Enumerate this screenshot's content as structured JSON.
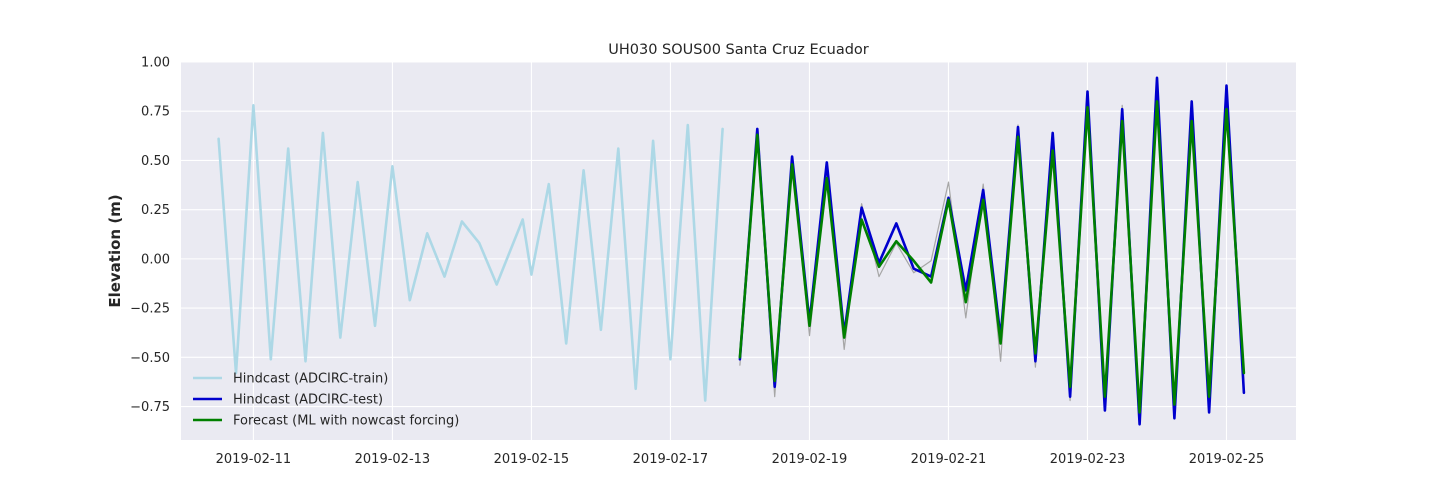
{
  "chart_data": {
    "type": "line",
    "title": "UH030 SOUS00 Santa Cruz Ecuador",
    "xlabel": "",
    "ylabel": "Elevation (m)",
    "xlim": [
      "2019-02-09T23:00",
      "2019-02-26T00:00"
    ],
    "ylim": [
      -0.92,
      1.0
    ],
    "x_ticks": [
      "2019-02-11",
      "2019-02-13",
      "2019-02-15",
      "2019-02-17",
      "2019-02-19",
      "2019-02-21",
      "2019-02-23",
      "2019-02-25"
    ],
    "y_ticks": [
      -0.75,
      -0.5,
      -0.25,
      0.0,
      0.25,
      0.5,
      0.75,
      1.0
    ],
    "y_tick_labels": [
      "−0.75",
      "−0.50",
      "−0.25",
      "0.00",
      "0.25",
      "0.50",
      "0.75",
      "1.00"
    ],
    "grid": true,
    "legend_position": "lower-left",
    "series": [
      {
        "name": "Hindcast (ADCIRC-train)",
        "color": "#add8e6",
        "x": [
          "2019-02-10T12:00",
          "2019-02-10T18:00",
          "2019-02-11T00:00",
          "2019-02-11T06:00",
          "2019-02-11T12:00",
          "2019-02-11T18:00",
          "2019-02-12T00:00",
          "2019-02-12T06:00",
          "2019-02-12T12:00",
          "2019-02-12T18:00",
          "2019-02-13T00:00",
          "2019-02-13T06:00",
          "2019-02-13T12:00",
          "2019-02-13T18:00",
          "2019-02-14T00:00",
          "2019-02-14T06:00",
          "2019-02-14T12:00",
          "2019-02-14T21:00",
          "2019-02-15T00:00",
          "2019-02-15T06:00",
          "2019-02-15T12:00",
          "2019-02-15T18:00",
          "2019-02-16T00:00",
          "2019-02-16T06:00",
          "2019-02-16T12:00",
          "2019-02-16T18:00",
          "2019-02-17T00:00",
          "2019-02-17T06:00",
          "2019-02-17T12:00",
          "2019-02-17T18:00"
        ],
        "y": [
          0.61,
          -0.58,
          0.78,
          -0.51,
          0.56,
          -0.52,
          0.64,
          -0.4,
          0.39,
          -0.34,
          0.47,
          -0.21,
          0.13,
          -0.09,
          0.19,
          0.08,
          -0.13,
          0.2,
          -0.08,
          0.38,
          -0.43,
          0.45,
          -0.36,
          0.56,
          -0.66,
          0.6,
          -0.51,
          0.68,
          -0.72,
          0.66
        ]
      },
      {
        "name": "",
        "color": "#a6a6a6",
        "x": [
          "2019-02-18T00:00",
          "2019-02-18T06:00",
          "2019-02-18T12:00",
          "2019-02-18T18:00",
          "2019-02-19T00:00",
          "2019-02-19T06:00",
          "2019-02-19T12:00",
          "2019-02-19T18:00",
          "2019-02-20T00:00",
          "2019-02-20T06:00",
          "2019-02-20T12:00",
          "2019-02-20T18:00",
          "2019-02-21T00:00",
          "2019-02-21T06:00",
          "2019-02-21T12:00",
          "2019-02-21T18:00",
          "2019-02-22T00:00",
          "2019-02-22T06:00",
          "2019-02-22T12:00",
          "2019-02-22T18:00",
          "2019-02-23T00:00",
          "2019-02-23T06:00",
          "2019-02-23T12:00",
          "2019-02-23T18:00",
          "2019-02-24T00:00",
          "2019-02-24T06:00",
          "2019-02-24T12:00",
          "2019-02-24T18:00",
          "2019-02-25T00:00",
          "2019-02-25T06:00"
        ],
        "y": [
          -0.54,
          0.62,
          -0.7,
          0.5,
          -0.39,
          0.43,
          -0.46,
          0.28,
          -0.09,
          0.08,
          -0.07,
          -0.01,
          0.39,
          -0.3,
          0.38,
          -0.52,
          0.68,
          -0.55,
          0.6,
          -0.72,
          0.84,
          -0.74,
          0.78,
          -0.8,
          0.9,
          -0.76,
          0.78,
          -0.73,
          0.82,
          -0.62
        ]
      },
      {
        "name": "Hindcast (ADCIRC-test)",
        "color": "#0000cd",
        "x": [
          "2019-02-18T00:00",
          "2019-02-18T06:00",
          "2019-02-18T12:00",
          "2019-02-18T18:00",
          "2019-02-19T00:00",
          "2019-02-19T06:00",
          "2019-02-19T12:00",
          "2019-02-19T18:00",
          "2019-02-20T00:00",
          "2019-02-20T06:00",
          "2019-02-20T12:00",
          "2019-02-20T18:00",
          "2019-02-21T00:00",
          "2019-02-21T06:00",
          "2019-02-21T12:00",
          "2019-02-21T18:00",
          "2019-02-22T00:00",
          "2019-02-22T06:00",
          "2019-02-22T12:00",
          "2019-02-22T18:00",
          "2019-02-23T00:00",
          "2019-02-23T06:00",
          "2019-02-23T12:00",
          "2019-02-23T18:00",
          "2019-02-24T00:00",
          "2019-02-24T06:00",
          "2019-02-24T12:00",
          "2019-02-24T18:00",
          "2019-02-25T00:00",
          "2019-02-25T06:00"
        ],
        "y": [
          -0.51,
          0.66,
          -0.65,
          0.52,
          -0.32,
          0.49,
          -0.38,
          0.26,
          -0.02,
          0.18,
          -0.05,
          -0.09,
          0.31,
          -0.16,
          0.35,
          -0.4,
          0.67,
          -0.52,
          0.64,
          -0.7,
          0.85,
          -0.77,
          0.76,
          -0.84,
          0.92,
          -0.81,
          0.8,
          -0.78,
          0.88,
          -0.68
        ]
      },
      {
        "name": "Forecast (ML with nowcast forcing)",
        "color": "#008000",
        "x": [
          "2019-02-18T00:00",
          "2019-02-18T06:00",
          "2019-02-18T12:00",
          "2019-02-18T18:00",
          "2019-02-19T00:00",
          "2019-02-19T06:00",
          "2019-02-19T12:00",
          "2019-02-19T18:00",
          "2019-02-20T00:00",
          "2019-02-20T06:00",
          "2019-02-20T12:00",
          "2019-02-20T18:00",
          "2019-02-21T00:00",
          "2019-02-21T06:00",
          "2019-02-21T12:00",
          "2019-02-21T18:00",
          "2019-02-22T00:00",
          "2019-02-22T06:00",
          "2019-02-22T12:00",
          "2019-02-22T18:00",
          "2019-02-23T00:00",
          "2019-02-23T06:00",
          "2019-02-23T12:00",
          "2019-02-23T18:00",
          "2019-02-24T00:00",
          "2019-02-24T06:00",
          "2019-02-24T12:00",
          "2019-02-24T18:00",
          "2019-02-25T00:00",
          "2019-02-25T06:00"
        ],
        "y": [
          -0.5,
          0.63,
          -0.62,
          0.48,
          -0.34,
          0.41,
          -0.4,
          0.2,
          -0.04,
          0.09,
          -0.01,
          -0.12,
          0.3,
          -0.22,
          0.3,
          -0.43,
          0.62,
          -0.48,
          0.55,
          -0.65,
          0.77,
          -0.7,
          0.7,
          -0.78,
          0.8,
          -0.74,
          0.7,
          -0.7,
          0.76,
          -0.58
        ]
      }
    ]
  }
}
